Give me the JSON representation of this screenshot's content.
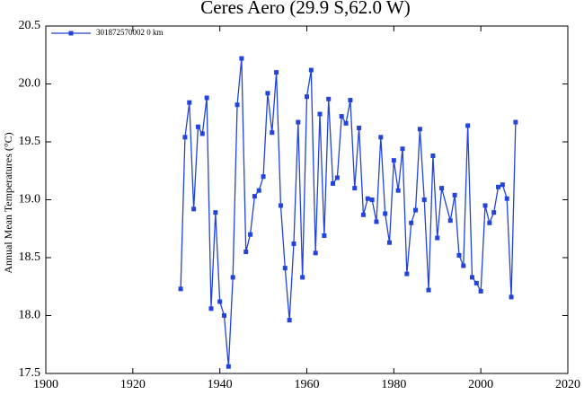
{
  "chart_data": {
    "type": "line",
    "title": "Ceres Aero (29.9 S,62.0 W)",
    "y_label": "Annual Mean Temperatures (°C)",
    "x": [
      1931,
      1932,
      1933,
      1934,
      1935,
      1936,
      1937,
      1938,
      1939,
      1940,
      1941,
      1942,
      1943,
      1944,
      1945,
      1946,
      1947,
      1948,
      1949,
      1950,
      1951,
      1952,
      1953,
      1954,
      1955,
      1956,
      1957,
      1958,
      1959,
      1960,
      1961,
      1962,
      1963,
      1964,
      1965,
      1966,
      1967,
      1968,
      1969,
      1970,
      1971,
      1972,
      1973,
      1974,
      1975,
      1976,
      1977,
      1978,
      1979,
      1980,
      1981,
      1982,
      1983,
      1984,
      1985,
      1986,
      1987,
      1988,
      1989,
      1990,
      1991,
      1993,
      1994,
      1995,
      1996,
      1997,
      1998,
      1999,
      2000,
      2001,
      2002,
      2003,
      2004,
      2005,
      2006,
      2007,
      2008
    ],
    "series": [
      {
        "name": "301872570002  0 km",
        "color": "#2244dd",
        "values": [
          18.23,
          19.54,
          19.84,
          18.92,
          19.63,
          19.57,
          19.88,
          18.06,
          18.89,
          18.12,
          18.0,
          17.56,
          18.33,
          19.82,
          20.22,
          18.55,
          18.7,
          19.03,
          19.08,
          19.2,
          19.92,
          19.58,
          20.1,
          18.95,
          18.41,
          17.96,
          18.62,
          19.67,
          18.33,
          19.89,
          20.12,
          18.54,
          19.74,
          18.69,
          19.87,
          19.14,
          19.19,
          19.72,
          19.66,
          19.86,
          19.1,
          19.62,
          18.87,
          19.01,
          19.0,
          18.81,
          19.54,
          18.88,
          18.63,
          19.34,
          19.08,
          19.44,
          18.36,
          18.8,
          18.91,
          19.61,
          19.0,
          18.22,
          19.38,
          18.67,
          19.1,
          18.82,
          19.04,
          18.52,
          18.43,
          19.64,
          18.33,
          18.28,
          18.21,
          18.95,
          18.8,
          18.89,
          19.11,
          19.13,
          19.01,
          18.16,
          19.67
        ]
      }
    ],
    "xlim": [
      1900,
      2020
    ],
    "xticks": [
      1900,
      1920,
      1940,
      1960,
      1980,
      2000,
      2020
    ],
    "ylim": [
      17.5,
      20.5
    ],
    "yticks": [
      17.5,
      {
        "value": 18,
        "label": "18.0"
      },
      18.5,
      {
        "value": 19,
        "label": "19.0"
      },
      19.5,
      {
        "value": 20,
        "label": "20.0"
      },
      20.5
    ],
    "legend": "upper-left"
  }
}
